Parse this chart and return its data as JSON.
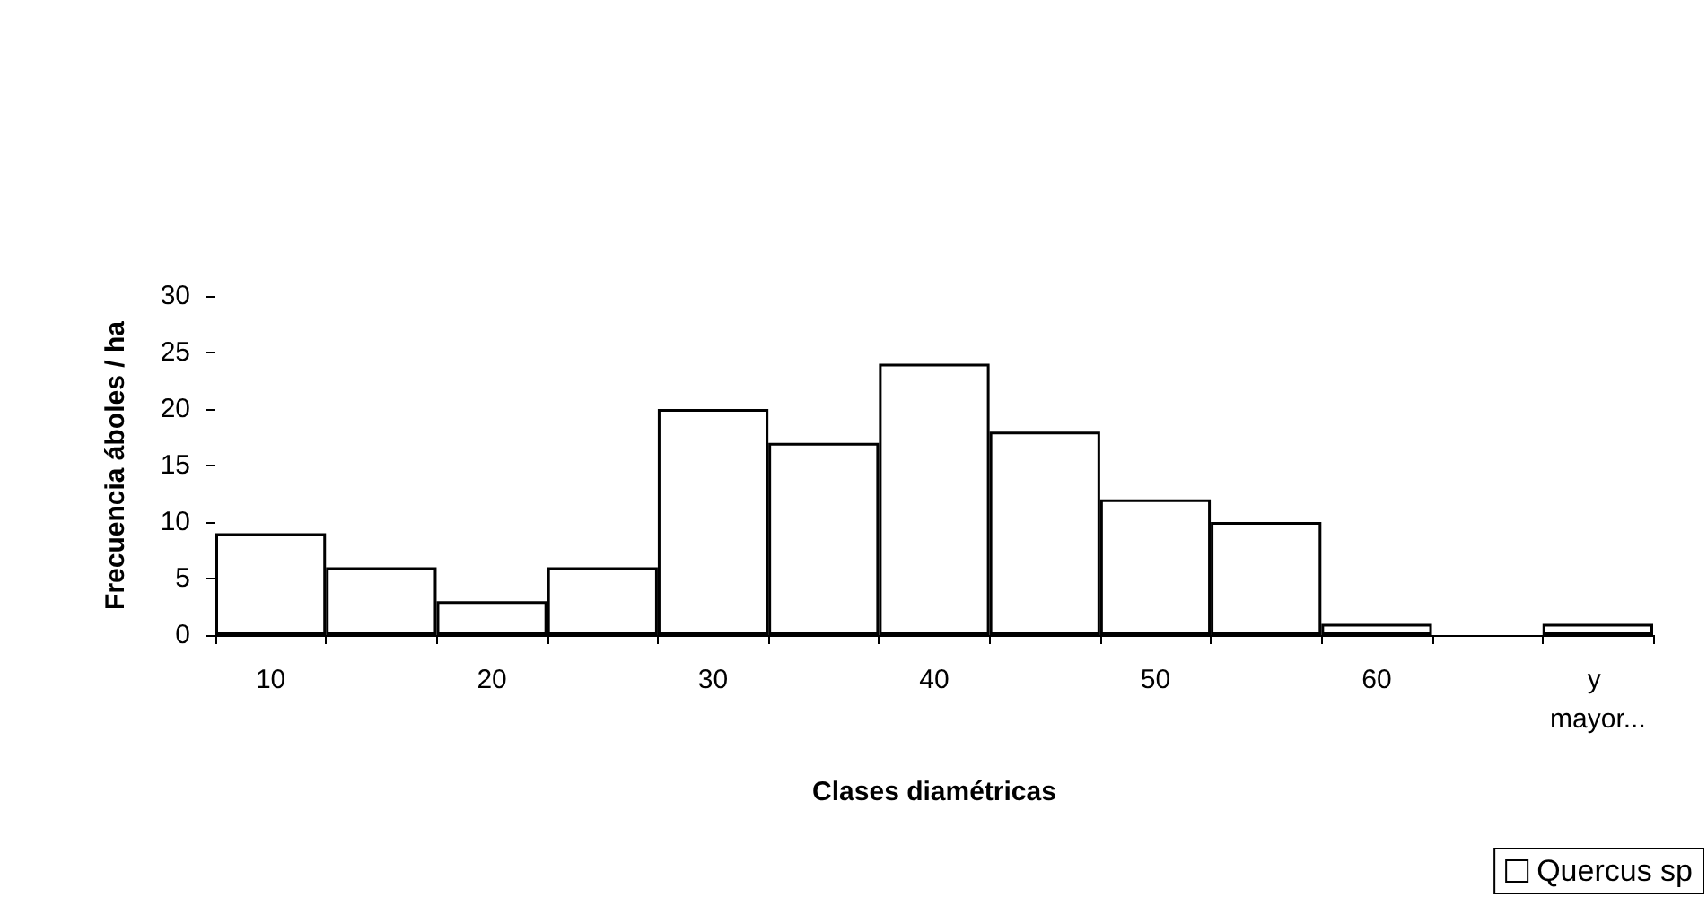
{
  "chart_data": {
    "type": "bar",
    "xlabel": "Clases diamétricas",
    "ylabel": "Frecuencia áboles / ha",
    "categories": [
      "10",
      null,
      "20",
      null,
      "30",
      null,
      "40",
      null,
      "50",
      null,
      "60",
      null,
      "y mayor..."
    ],
    "series": [
      {
        "name": "Quercus sp",
        "color": "#ffffff",
        "values": [
          9,
          6,
          3,
          6,
          20,
          17,
          24,
          18,
          12,
          10,
          1,
          0,
          1
        ]
      }
    ],
    "ylim": [
      0,
      30
    ],
    "yticks": [
      0,
      5,
      10,
      15,
      20,
      25,
      30
    ],
    "grid": false,
    "legend": "bottom right"
  }
}
